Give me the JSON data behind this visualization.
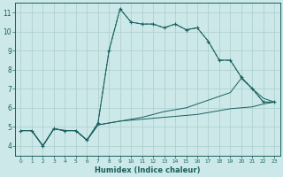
{
  "xlabel": "Humidex (Indice chaleur)",
  "bg_color": "#cce8e8",
  "grid_color": "#aacece",
  "line_color": "#1a6060",
  "xlim": [
    -0.5,
    23.5
  ],
  "ylim": [
    3.5,
    11.5
  ],
  "xticks": [
    0,
    1,
    2,
    3,
    4,
    5,
    6,
    7,
    8,
    9,
    10,
    11,
    12,
    13,
    14,
    15,
    16,
    17,
    18,
    19,
    20,
    21,
    22,
    23
  ],
  "yticks": [
    4,
    5,
    6,
    7,
    8,
    9,
    10,
    11
  ],
  "series_dashed": {
    "x": [
      0,
      1,
      2,
      3,
      4,
      5,
      6,
      7,
      8,
      9,
      10,
      11,
      12,
      13,
      14,
      15,
      16,
      17,
      18,
      19,
      20,
      21,
      22,
      23
    ],
    "y": [
      4.8,
      4.8,
      4.0,
      4.9,
      4.8,
      4.8,
      4.3,
      5.2,
      9.0,
      11.2,
      10.5,
      10.4,
      10.4,
      10.2,
      10.4,
      10.1,
      10.2,
      9.5,
      8.5,
      8.5,
      7.6,
      7.0,
      6.3,
      6.3
    ]
  },
  "series_solid1": {
    "x": [
      0,
      1,
      2,
      3,
      4,
      5,
      6,
      7,
      8,
      9,
      10,
      11,
      12,
      13,
      14,
      15,
      16,
      17,
      18,
      19,
      20,
      21,
      22,
      23
    ],
    "y": [
      4.8,
      4.8,
      4.0,
      4.9,
      4.8,
      4.8,
      4.3,
      5.2,
      9.0,
      11.2,
      10.5,
      10.4,
      10.4,
      10.2,
      10.4,
      10.1,
      10.2,
      9.5,
      8.5,
      8.5,
      7.6,
      7.0,
      6.3,
      6.3
    ]
  },
  "series_solid2": {
    "x": [
      0,
      1,
      2,
      3,
      4,
      5,
      6,
      7,
      8,
      9,
      10,
      11,
      12,
      13,
      14,
      15,
      16,
      17,
      18,
      19,
      20,
      21,
      22,
      23
    ],
    "y": [
      4.8,
      4.8,
      4.0,
      4.9,
      4.8,
      4.8,
      4.3,
      5.1,
      5.2,
      5.3,
      5.35,
      5.4,
      5.45,
      5.5,
      5.55,
      5.6,
      5.65,
      5.75,
      5.85,
      5.95,
      6.0,
      6.05,
      6.2,
      6.3
    ]
  },
  "series_solid3": {
    "x": [
      0,
      1,
      2,
      3,
      4,
      5,
      6,
      7,
      8,
      9,
      10,
      11,
      12,
      13,
      14,
      15,
      16,
      17,
      18,
      19,
      20,
      21,
      22,
      23
    ],
    "y": [
      4.8,
      4.8,
      4.0,
      4.9,
      4.8,
      4.8,
      4.3,
      5.1,
      5.2,
      5.3,
      5.4,
      5.5,
      5.65,
      5.8,
      5.9,
      6.0,
      6.2,
      6.4,
      6.6,
      6.8,
      7.55,
      7.0,
      6.5,
      6.3
    ]
  }
}
